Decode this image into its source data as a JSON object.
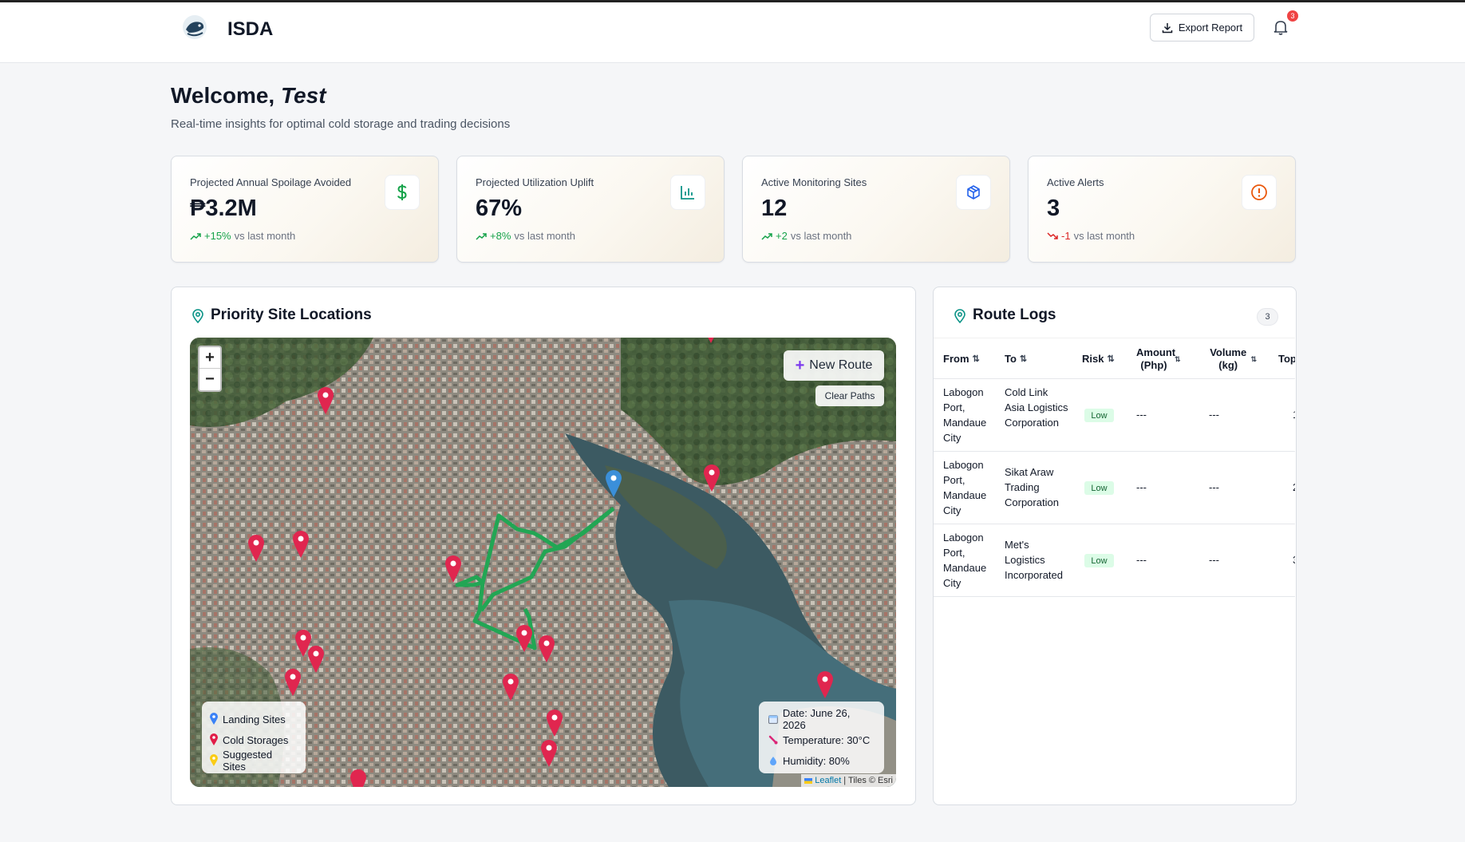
{
  "header": {
    "brand": "ISDA",
    "export_label": "Export Report",
    "notification_count": "3"
  },
  "welcome": {
    "greeting": "Welcome,",
    "user": "Test",
    "subtitle": "Real-time insights for optimal cold storage and trading decisions"
  },
  "stats": [
    {
      "label": "Projected Annual Spoilage Avoided",
      "value": "₱3.2M",
      "delta": "+15%",
      "delta_suffix": "vs last month",
      "direction": "up",
      "icon": "dollar-icon",
      "icon_color": "#16a34a"
    },
    {
      "label": "Projected Utilization Uplift",
      "value": "67%",
      "delta": "+8%",
      "delta_suffix": "vs last month",
      "direction": "up",
      "icon": "bar-chart-icon",
      "icon_color": "#0d9488"
    },
    {
      "label": "Active Monitoring Sites",
      "value": "12",
      "delta": "+2",
      "delta_suffix": "vs last month",
      "direction": "up",
      "icon": "package-icon",
      "icon_color": "#2563eb"
    },
    {
      "label": "Active Alerts",
      "value": "3",
      "delta": "-1",
      "delta_suffix": "vs last month",
      "direction": "down",
      "icon": "alert-circle-icon",
      "icon_color": "#ea580c"
    }
  ],
  "map_panel": {
    "title": "Priority Site Locations",
    "new_route_label": "New Route",
    "clear_paths_label": "Clear Paths",
    "zoom_in": "+",
    "zoom_out": "−",
    "legend": [
      {
        "label": "Landing Sites",
        "color": "#3b82f6"
      },
      {
        "label": "Cold Storages",
        "color": "#e11d48"
      },
      {
        "label": "Suggested Sites",
        "color": "#facc15"
      }
    ],
    "weather": {
      "date": "Date: June 26, 2026",
      "temperature": "Temperature: 30°C",
      "humidity": "Humidity: 80%"
    },
    "attribution_link": "Leaflet",
    "attribution_text": "| Tiles © Esri"
  },
  "route_logs": {
    "title": "Route Logs",
    "count": "3",
    "columns": [
      "From",
      "To",
      "Risk",
      "Amount (Php)",
      "Volume (kg)",
      "Top"
    ],
    "rows": [
      {
        "from": "Labogon Port, Mandaue City",
        "to": "Cold Link Asia Logistics Corporation",
        "risk": "Low",
        "amount": "---",
        "volume": "---",
        "top": "1"
      },
      {
        "from": "Labogon Port, Mandaue City",
        "to": "Sikat Araw Trading Corporation",
        "risk": "Low",
        "amount": "---",
        "volume": "---",
        "top": "2"
      },
      {
        "from": "Labogon Port, Mandaue City",
        "to": "Met's Logistics Incorporated",
        "risk": "Low",
        "amount": "---",
        "volume": "---",
        "top": "3"
      }
    ]
  }
}
